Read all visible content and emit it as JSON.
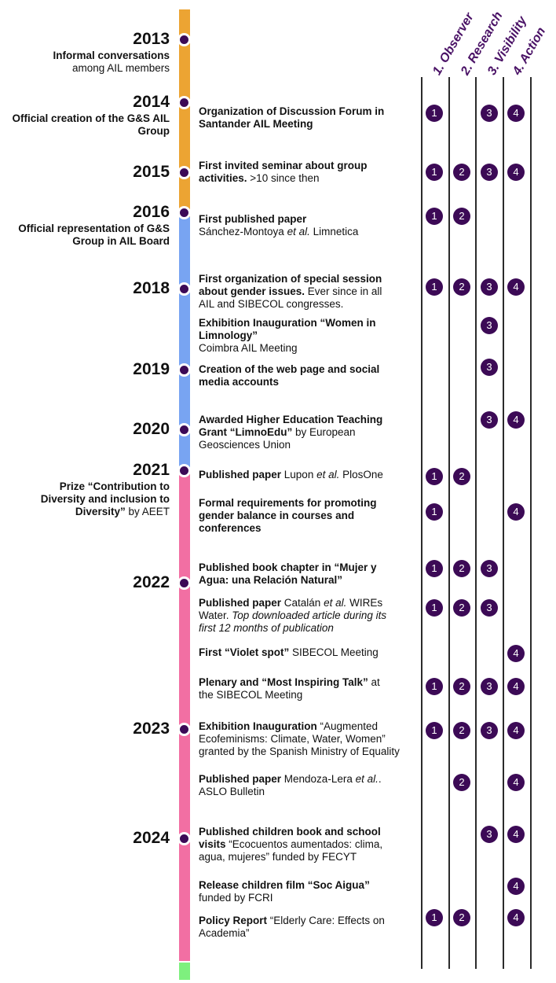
{
  "columns": [
    "1. Observer",
    "2. Research",
    "3. Visibility",
    "4. Action"
  ],
  "colors": {
    "orange": "#ECA433",
    "blue": "#78A4F2",
    "pink": "#F26FA3",
    "green": "#7EF07E",
    "badge": "#3C0A56",
    "header": "#4A1266"
  },
  "years": [
    {
      "year": "2013",
      "desc": [
        {
          "t": "Informal conversations",
          "b": true
        },
        {
          "t": "among AIL members",
          "b": false
        }
      ]
    },
    {
      "year": "2014",
      "desc": [
        {
          "t": "Official creation of the G&S AIL",
          "b": true
        },
        {
          "t": "Group",
          "b": true
        }
      ]
    },
    {
      "year": "2015",
      "desc": []
    },
    {
      "year": "2016",
      "desc": [
        {
          "t": "Official representation of G&S",
          "b": true
        },
        {
          "t": "Group in AIL Board",
          "b": true
        }
      ]
    },
    {
      "year": "2018",
      "desc": []
    },
    {
      "year": "2019",
      "desc": []
    },
    {
      "year": "2020",
      "desc": []
    },
    {
      "year": "2021",
      "desc": [
        {
          "t": "Prize “Contribution to",
          "b": true
        },
        {
          "t": "Diversity and inclusion to",
          "b": true
        },
        {
          "t": "Diversity”",
          "b": true,
          "after": " by AEET"
        }
      ]
    },
    {
      "year": "2022",
      "desc": []
    },
    {
      "year": "2023",
      "desc": []
    },
    {
      "year": "2024",
      "desc": []
    }
  ],
  "events": [
    {
      "lines": [
        [
          {
            "t": "Organization of Discussion Forum in",
            "s": "b"
          }
        ],
        [
          {
            "t": "Santander AIL Meeting",
            "s": "b"
          }
        ]
      ],
      "badges": [
        "1",
        "",
        "3",
        "4"
      ]
    },
    {
      "lines": [
        [
          {
            "t": "First invited seminar about group",
            "s": "b"
          }
        ],
        [
          {
            "t": "activities.",
            "s": "b"
          },
          {
            "t": " >10 since then",
            "s": ""
          }
        ]
      ],
      "badges": [
        "1",
        "2",
        "3",
        "4"
      ]
    },
    {
      "lines": [
        [
          {
            "t": "First published paper",
            "s": "b"
          }
        ],
        [
          {
            "t": "Sánchez-Montoya ",
            "s": ""
          },
          {
            "t": "et al.",
            "s": "i"
          },
          {
            "t": " Limnetica",
            "s": ""
          }
        ]
      ],
      "badges": [
        "1",
        "2",
        "",
        ""
      ]
    },
    {
      "lines": [
        [
          {
            "t": "First organization of special session",
            "s": "b"
          }
        ],
        [
          {
            "t": "about gender issues.",
            "s": "b"
          },
          {
            "t": " Ever since in all",
            "s": ""
          }
        ],
        [
          {
            "t": "AIL and SIBECOL congresses.",
            "s": ""
          }
        ]
      ],
      "badges": [
        "1",
        "2",
        "3",
        "4"
      ]
    },
    {
      "lines": [
        [
          {
            "t": "Exhibition Inauguration “Women in",
            "s": "b"
          }
        ],
        [
          {
            "t": "Limnology”",
            "s": "b"
          }
        ],
        [
          {
            "t": "Coimbra AIL Meeting",
            "s": ""
          }
        ]
      ],
      "badges": [
        "",
        "",
        "3",
        ""
      ]
    },
    {
      "lines": [
        [
          {
            "t": "Creation of the web page and social",
            "s": "b"
          }
        ],
        [
          {
            "t": "media accounts",
            "s": "b"
          }
        ]
      ],
      "badges": [
        "",
        "",
        "3",
        ""
      ]
    },
    {
      "lines": [
        [
          {
            "t": "Awarded Higher Education Teaching",
            "s": "b"
          }
        ],
        [
          {
            "t": "Grant “LimnoEdu”",
            "s": "b"
          },
          {
            "t": " by European",
            "s": ""
          }
        ],
        [
          {
            "t": "Geosciences Union",
            "s": ""
          }
        ]
      ],
      "badges": [
        "",
        "",
        "3",
        "4"
      ]
    },
    {
      "lines": [
        [
          {
            "t": "Published paper",
            "s": "b"
          },
          {
            "t": " Lupon ",
            "s": ""
          },
          {
            "t": "et al.",
            "s": "i"
          },
          {
            "t": " PlosOne",
            "s": ""
          }
        ]
      ],
      "badges": [
        "1",
        "2",
        "",
        ""
      ]
    },
    {
      "lines": [
        [
          {
            "t": "Formal requirements for promoting",
            "s": "b"
          }
        ],
        [
          {
            "t": "gender balance in courses and",
            "s": "b"
          }
        ],
        [
          {
            "t": "conferences",
            "s": "b"
          }
        ]
      ],
      "badges": [
        "1",
        "",
        "",
        "4"
      ]
    },
    {
      "lines": [
        [
          {
            "t": "Published book chapter in “Mujer y",
            "s": "b"
          }
        ],
        [
          {
            "t": "Agua: una Relación Natural”",
            "s": "b"
          }
        ]
      ],
      "badges": [
        "1",
        "2",
        "3",
        ""
      ]
    },
    {
      "lines": [
        [
          {
            "t": "Published paper",
            "s": "b"
          },
          {
            "t": " Catalán ",
            "s": ""
          },
          {
            "t": "et al.",
            "s": "i"
          },
          {
            "t": " WIREs",
            "s": ""
          }
        ],
        [
          {
            "t": "Water. ",
            "s": ""
          },
          {
            "t": "Top downloaded article during its",
            "s": "i"
          }
        ],
        [
          {
            "t": "first 12 months of publication",
            "s": "i"
          }
        ]
      ],
      "badges": [
        "1",
        "2",
        "3",
        ""
      ]
    },
    {
      "lines": [
        [
          {
            "t": "First “Violet spot”",
            "s": "b"
          },
          {
            "t": " SIBECOL Meeting",
            "s": ""
          }
        ]
      ],
      "badges": [
        "",
        "",
        "",
        "4"
      ]
    },
    {
      "lines": [
        [
          {
            "t": "Plenary and “Most Inspiring Talk”",
            "s": "b"
          },
          {
            "t": " at",
            "s": ""
          }
        ],
        [
          {
            "t": "the SIBECOL Meeting",
            "s": ""
          }
        ]
      ],
      "badges": [
        "1",
        "2",
        "3",
        "4"
      ]
    },
    {
      "lines": [
        [
          {
            "t": "Exhibition Inauguration",
            "s": "b"
          },
          {
            "t": " “Augmented",
            "s": ""
          }
        ],
        [
          {
            "t": "Ecofeminisms: Climate, Water, Women”",
            "s": ""
          }
        ],
        [
          {
            "t": "granted by the Spanish Ministry of Equality",
            "s": ""
          }
        ]
      ],
      "badges": [
        "1",
        "2",
        "3",
        "4"
      ]
    },
    {
      "lines": [
        [
          {
            "t": "Published paper",
            "s": "b"
          },
          {
            "t": " Mendoza-Lera ",
            "s": ""
          },
          {
            "t": "et al.",
            "s": "i"
          },
          {
            "t": ".",
            "s": ""
          }
        ],
        [
          {
            "t": "ASLO Bulletin",
            "s": ""
          }
        ]
      ],
      "badges": [
        "",
        "2",
        "",
        "4"
      ]
    },
    {
      "lines": [
        [
          {
            "t": "Published children book and school",
            "s": "b"
          }
        ],
        [
          {
            "t": "visits",
            "s": "b"
          },
          {
            "t": " “Ecocuentos aumentados: clima,",
            "s": ""
          }
        ],
        [
          {
            "t": "agua, mujeres” funded by FECYT",
            "s": ""
          }
        ]
      ],
      "badges": [
        "",
        "",
        "3",
        "4"
      ]
    },
    {
      "lines": [
        [
          {
            "t": "Release children film “Soc Aigua”",
            "s": "b"
          }
        ],
        [
          {
            "t": "funded by FCRI",
            "s": ""
          }
        ]
      ],
      "badges": [
        "",
        "",
        "",
        "4"
      ]
    },
    {
      "lines": [
        [
          {
            "t": "Policy Report",
            "s": "b"
          },
          {
            "t": " “Elderly Care: Effects on",
            "s": ""
          }
        ],
        [
          {
            "t": "Academia”",
            "s": ""
          }
        ]
      ],
      "badges": [
        "1",
        "2",
        "",
        "4"
      ]
    }
  ]
}
